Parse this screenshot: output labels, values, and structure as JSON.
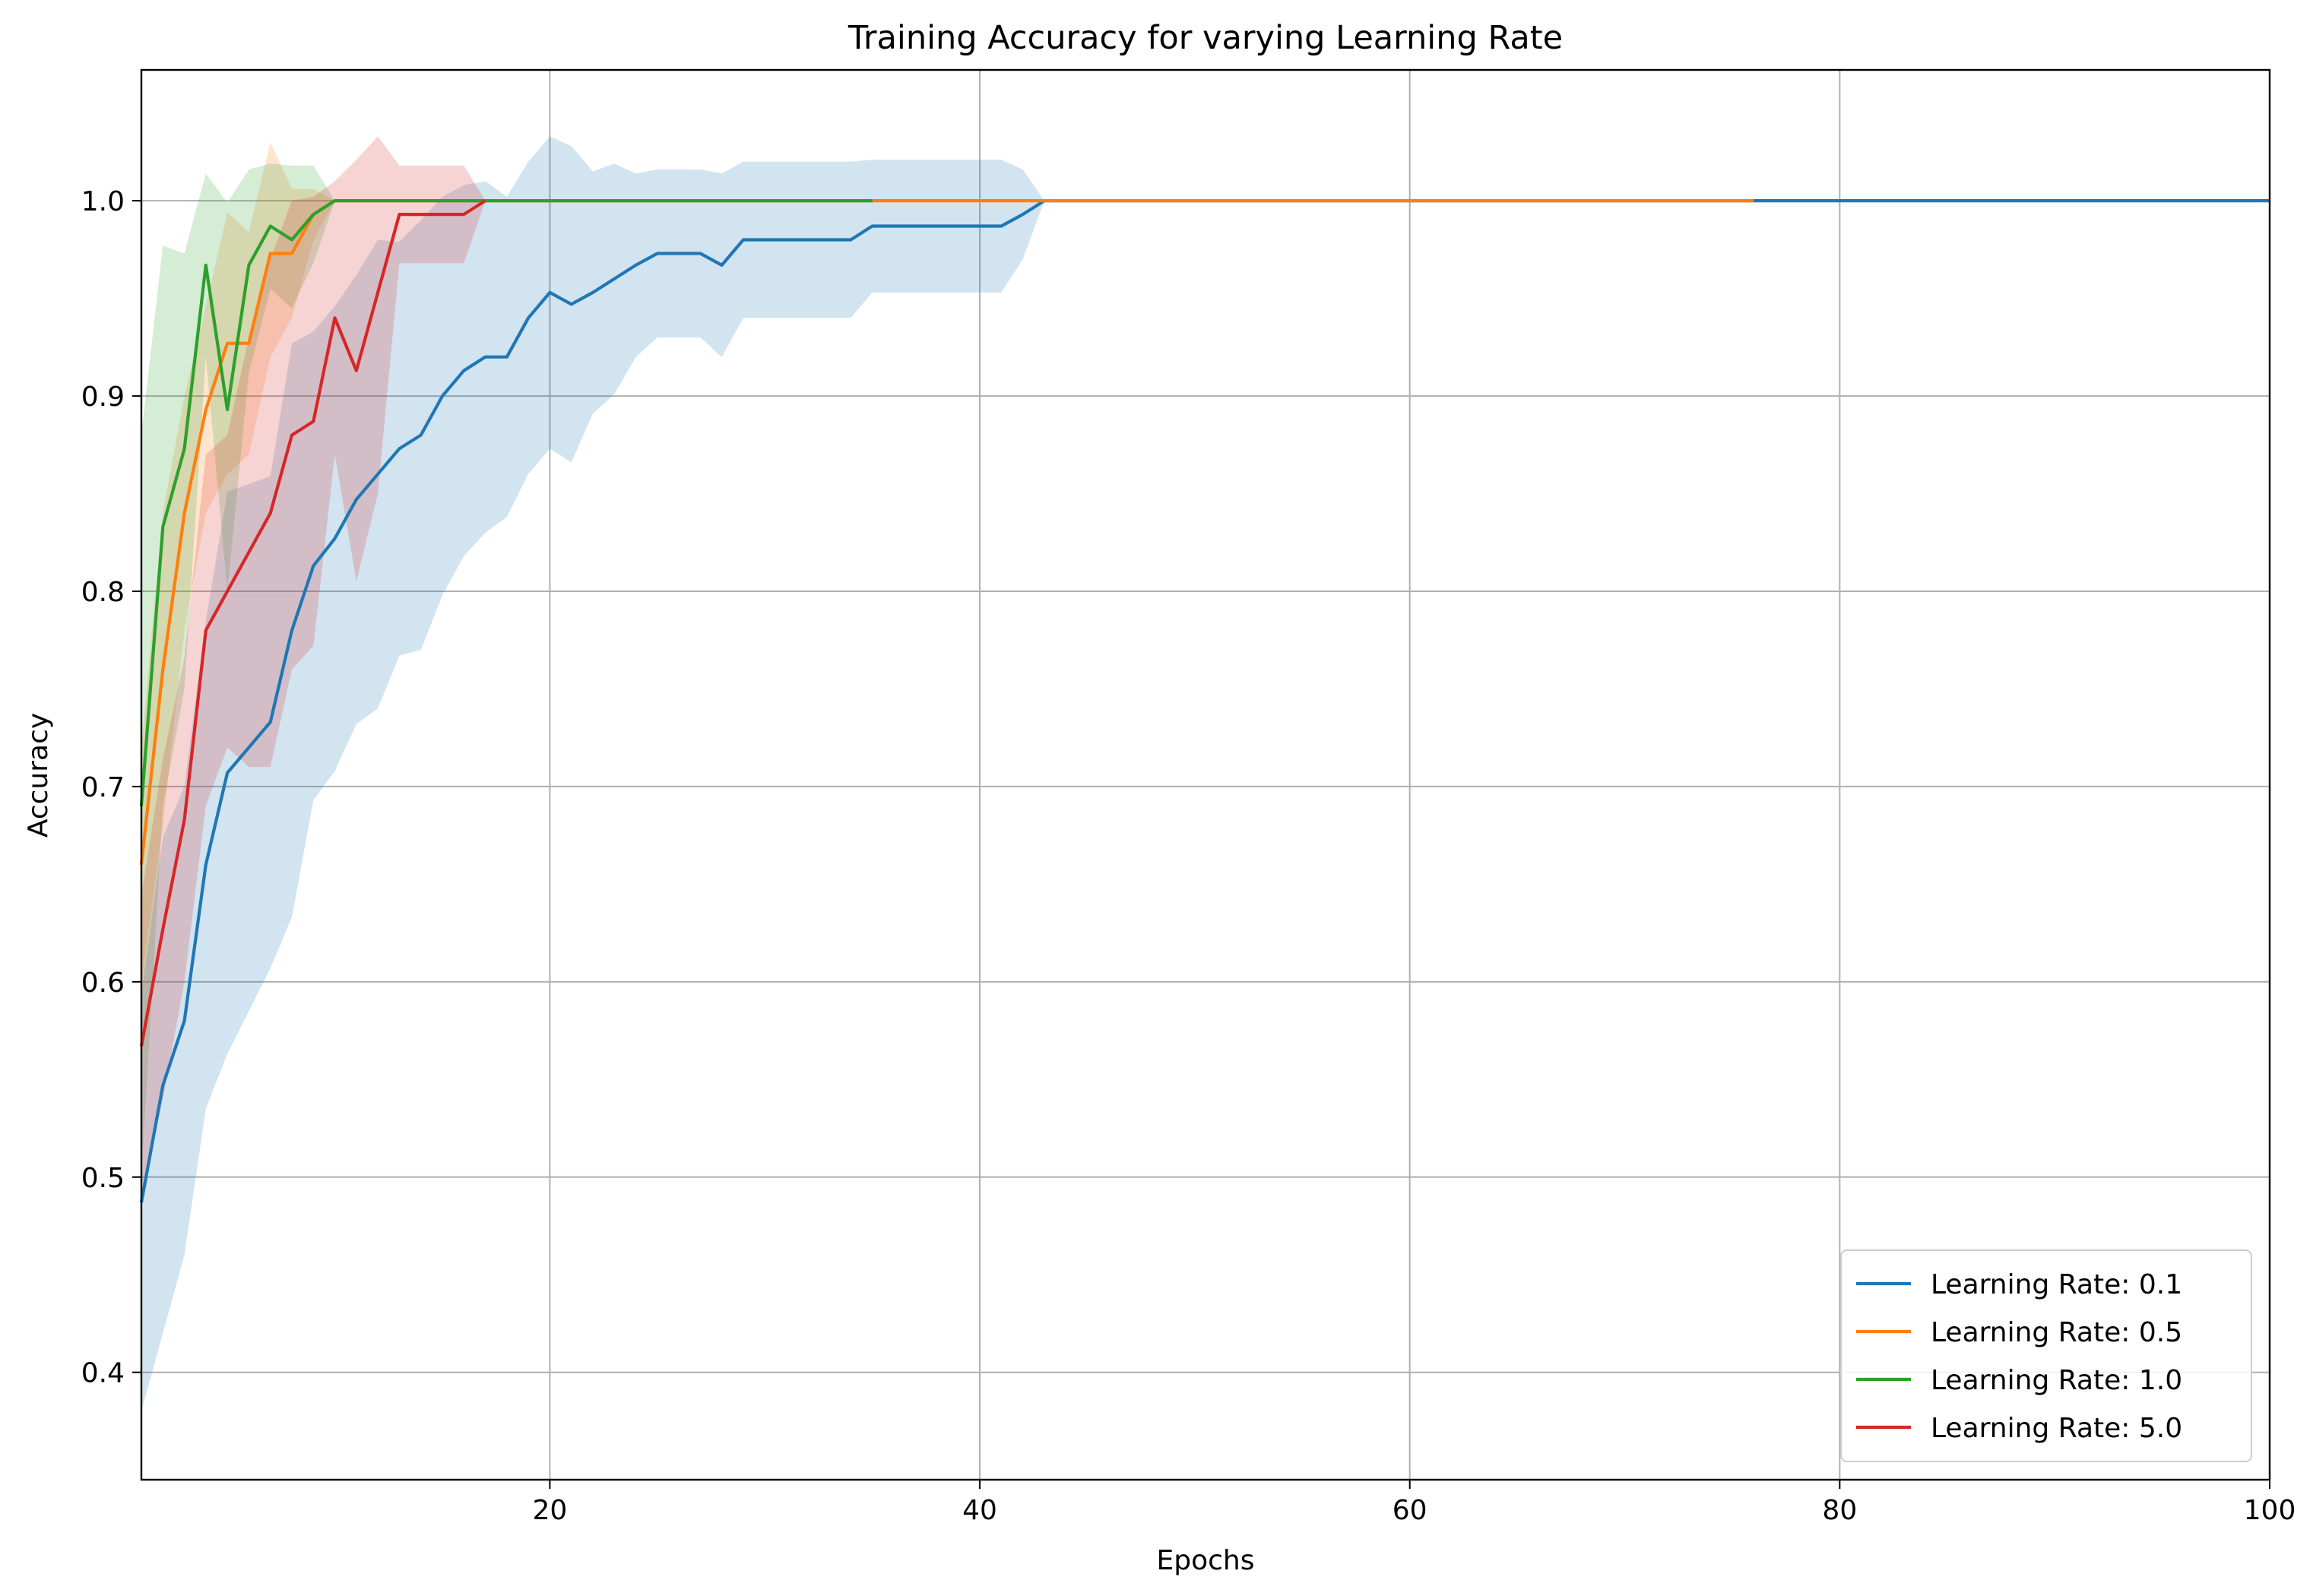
{
  "chart_data": {
    "type": "line",
    "title": "Training Accuracy for varying Learning Rate",
    "xlabel": "Epochs",
    "ylabel": "Accuracy",
    "xlim": [
      1,
      100
    ],
    "ylim": [
      0.345,
      1.067
    ],
    "xticks": [
      20,
      40,
      60,
      80,
      100
    ],
    "xtick_labels": [
      "20",
      "40",
      "60",
      "80",
      "100"
    ],
    "yticks": [
      0.4,
      0.5,
      0.6,
      0.7,
      0.8,
      0.9,
      1.0
    ],
    "ytick_labels": [
      "0.4",
      "0.5",
      "0.6",
      "0.7",
      "0.8",
      "0.9",
      "1.0"
    ],
    "grid": true,
    "legend_position": "lower-right",
    "series": [
      {
        "name": "Learning Rate: 0.1",
        "color": "#1f77b4",
        "band_opacity": 0.2,
        "x": [
          1,
          2,
          3,
          4,
          5,
          6,
          7,
          8,
          9,
          10,
          11,
          12,
          13,
          14,
          15,
          16,
          17,
          18,
          19,
          20,
          21,
          22,
          23,
          24,
          25,
          26,
          27,
          28,
          29,
          30,
          31,
          32,
          33,
          34,
          35,
          36,
          37,
          38,
          39,
          40,
          41,
          42,
          43,
          100
        ],
        "y": [
          0.487,
          0.547,
          0.58,
          0.66,
          0.707,
          0.72,
          0.733,
          0.78,
          0.813,
          0.827,
          0.847,
          0.86,
          0.873,
          0.88,
          0.9,
          0.913,
          0.92,
          0.92,
          0.94,
          0.953,
          0.947,
          0.953,
          0.96,
          0.967,
          0.973,
          0.973,
          0.973,
          0.967,
          0.98,
          0.98,
          0.98,
          0.98,
          0.98,
          0.98,
          0.987,
          0.987,
          0.987,
          0.987,
          0.987,
          0.987,
          0.987,
          0.993,
          1.0,
          1.0
        ],
        "lower": [
          0.38,
          0.42,
          0.46,
          0.535,
          0.563,
          0.585,
          0.607,
          0.633,
          0.693,
          0.708,
          0.732,
          0.74,
          0.767,
          0.77,
          0.798,
          0.818,
          0.83,
          0.838,
          0.86,
          0.873,
          0.866,
          0.891,
          0.901,
          0.92,
          0.93,
          0.93,
          0.93,
          0.92,
          0.94,
          0.94,
          0.94,
          0.94,
          0.94,
          0.94,
          0.953,
          0.953,
          0.953,
          0.953,
          0.953,
          0.953,
          0.953,
          0.97,
          1.0,
          1.0
        ],
        "upper": [
          0.594,
          0.674,
          0.7,
          0.785,
          0.851,
          0.855,
          0.859,
          0.927,
          0.933,
          0.946,
          0.962,
          0.98,
          0.979,
          0.99,
          1.002,
          1.008,
          1.01,
          1.002,
          1.02,
          1.033,
          1.028,
          1.015,
          1.019,
          1.014,
          1.016,
          1.016,
          1.016,
          1.014,
          1.02,
          1.02,
          1.02,
          1.02,
          1.02,
          1.02,
          1.021,
          1.021,
          1.021,
          1.021,
          1.021,
          1.021,
          1.021,
          1.016,
          1.0,
          1.0
        ]
      },
      {
        "name": "Learning Rate: 0.5",
        "color": "#ff7f0e",
        "band_opacity": 0.2,
        "x": [
          1,
          2,
          3,
          4,
          5,
          6,
          7,
          8,
          9,
          10,
          11,
          12,
          13,
          14,
          15,
          16,
          17,
          18,
          19,
          20,
          21,
          22,
          23,
          24,
          25,
          26,
          27,
          28,
          29,
          30,
          31,
          32,
          33,
          34,
          35,
          76
        ],
        "y": [
          0.66,
          0.76,
          0.84,
          0.893,
          0.927,
          0.927,
          0.973,
          0.973,
          0.993,
          1.0,
          1.0,
          1.0,
          1.0,
          1.0,
          1.0,
          1.0,
          1.0,
          1.0,
          1.0,
          1.0,
          1.0,
          1.0,
          1.0,
          1.0,
          1.0,
          1.0,
          1.0,
          1.0,
          1.0,
          1.0,
          1.0,
          1.0,
          1.0,
          1.0,
          1.0,
          1.0
        ],
        "lower": [
          0.6,
          0.68,
          0.78,
          0.84,
          0.86,
          0.87,
          0.92,
          0.94,
          0.98,
          1.0,
          1.0,
          1.0,
          1.0,
          1.0,
          1.0,
          1.0,
          1.0,
          1.0,
          1.0,
          1.0,
          1.0,
          1.0,
          1.0,
          1.0,
          1.0,
          1.0,
          1.0,
          1.0,
          1.0,
          1.0,
          1.0,
          1.0,
          1.0,
          1.0,
          1.0,
          1.0
        ],
        "upper": [
          0.72,
          0.84,
          0.9,
          0.946,
          0.994,
          0.984,
          1.03,
          1.006,
          1.006,
          1.0,
          1.0,
          1.0,
          1.0,
          1.0,
          1.0,
          1.0,
          1.0,
          1.0,
          1.0,
          1.0,
          1.0,
          1.0,
          1.0,
          1.0,
          1.0,
          1.0,
          1.0,
          1.0,
          1.0,
          1.0,
          1.0,
          1.0,
          1.0,
          1.0,
          1.0,
          1.0
        ]
      },
      {
        "name": "Learning Rate: 1.0",
        "color": "#2ca02c",
        "band_opacity": 0.2,
        "x": [
          1,
          2,
          3,
          4,
          5,
          6,
          7,
          8,
          9,
          10,
          11,
          12,
          13,
          14,
          15,
          16,
          17,
          18,
          19,
          20,
          21,
          22,
          23,
          24,
          25,
          26,
          27,
          28,
          29,
          30,
          31,
          32,
          33,
          34,
          35
        ],
        "y": [
          0.69,
          0.833,
          0.873,
          0.967,
          0.893,
          0.967,
          0.987,
          0.98,
          0.993,
          1.0,
          1.0,
          1.0,
          1.0,
          1.0,
          1.0,
          1.0,
          1.0,
          1.0,
          1.0,
          1.0,
          1.0,
          1.0,
          1.0,
          1.0,
          1.0,
          1.0,
          1.0,
          1.0,
          1.0,
          1.0,
          1.0,
          1.0,
          1.0,
          1.0,
          1.0
        ],
        "lower": [
          0.5,
          0.69,
          0.75,
          0.92,
          0.8,
          0.912,
          0.955,
          0.945,
          0.968,
          1.0,
          1.0,
          1.0,
          1.0,
          1.0,
          1.0,
          1.0,
          1.0,
          1.0,
          1.0,
          1.0,
          1.0,
          1.0,
          1.0,
          1.0,
          1.0,
          1.0,
          1.0,
          1.0,
          1.0,
          1.0,
          1.0,
          1.0,
          1.0,
          1.0,
          1.0
        ],
        "upper": [
          0.88,
          0.977,
          0.973,
          1.014,
          0.999,
          1.016,
          1.019,
          1.018,
          1.018,
          1.0,
          1.0,
          1.0,
          1.0,
          1.0,
          1.0,
          1.0,
          1.0,
          1.0,
          1.0,
          1.0,
          1.0,
          1.0,
          1.0,
          1.0,
          1.0,
          1.0,
          1.0,
          1.0,
          1.0,
          1.0,
          1.0,
          1.0,
          1.0,
          1.0,
          1.0
        ]
      },
      {
        "name": "Learning Rate: 5.0",
        "color": "#d62728",
        "band_opacity": 0.2,
        "x": [
          1,
          2,
          3,
          4,
          5,
          6,
          7,
          8,
          9,
          10,
          11,
          12,
          13,
          14,
          15,
          16,
          17
        ],
        "y": [
          0.567,
          0.627,
          0.683,
          0.78,
          0.8,
          0.82,
          0.84,
          0.88,
          0.887,
          0.94,
          0.913,
          0.953,
          0.993,
          0.993,
          0.993,
          0.993,
          1.0
        ],
        "lower": [
          0.49,
          0.54,
          0.6,
          0.69,
          0.72,
          0.71,
          0.71,
          0.76,
          0.772,
          0.87,
          0.805,
          0.85,
          0.968,
          0.968,
          0.968,
          0.968,
          1.0
        ],
        "upper": [
          0.644,
          0.714,
          0.766,
          0.87,
          0.88,
          0.93,
          0.97,
          1.0,
          1.002,
          1.01,
          1.021,
          1.033,
          1.018,
          1.018,
          1.018,
          1.018,
          1.0
        ]
      }
    ]
  }
}
